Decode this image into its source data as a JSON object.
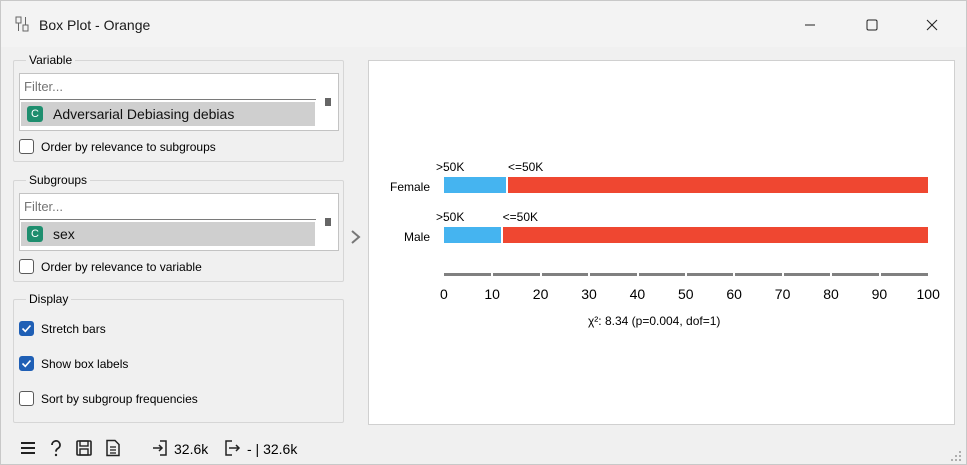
{
  "window": {
    "title": "Box Plot - Orange"
  },
  "variable": {
    "title": "Variable",
    "filter_placeholder": "Filter...",
    "selected_badge": "C",
    "selected": "Adversarial Debiasing debias",
    "order_label": "Order by relevance to subgroups",
    "order_checked": false
  },
  "subgroups": {
    "title": "Subgroups",
    "filter_placeholder": "Filter...",
    "selected_badge": "C",
    "selected": "sex",
    "order_label": "Order by relevance to variable",
    "order_checked": false
  },
  "display": {
    "title": "Display",
    "options": [
      {
        "label": "Stretch bars",
        "checked": true
      },
      {
        "label": "Show box labels",
        "checked": true
      },
      {
        "label": "Sort by subgroup frequencies",
        "checked": false
      }
    ]
  },
  "colors": {
    "class_high": "#45b4f0",
    "class_low": "#ef4731",
    "accent": "#1f5fb5",
    "badge": "#1e8e6e"
  },
  "chart_data": {
    "type": "bar",
    "orientation": "horizontal",
    "stacked": true,
    "stretched": true,
    "categories": [
      "Female",
      "Male"
    ],
    "series": [
      {
        "name": ">50K",
        "values": [
          12.8,
          11.7
        ],
        "color": "#45b4f0"
      },
      {
        "name": "<=50K",
        "values": [
          87.2,
          88.3
        ],
        "color": "#ef4731"
      }
    ],
    "xlim": [
      0,
      100
    ],
    "x_ticks": [
      "0",
      "10",
      "20",
      "30",
      "40",
      "50",
      "60",
      "70",
      "80",
      "90",
      "100"
    ],
    "annotation": "χ²: 8.34 (p=0.004, dof=1)"
  },
  "status": {
    "input_count": "32.6k",
    "output_count": "- | 32.6k"
  }
}
